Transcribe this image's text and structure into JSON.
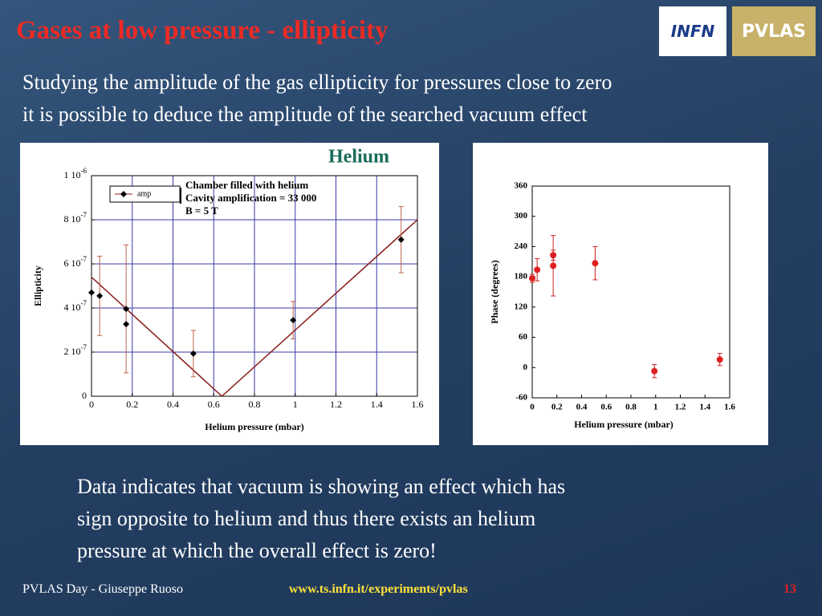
{
  "title": "Gases at low pressure - ellipticity",
  "logos": [
    "INFN",
    "PVLAS"
  ],
  "intro": [
    "Studying the amplitude of the gas ellipticity for pressures close to zero",
    "it is possible to deduce the amplitude of the searched vacuum effect"
  ],
  "conclusion": [
    "Data indicates that vacuum is showing an effect which has",
    "sign opposite to helium and thus there exists an helium",
    "pressure at which the overall effect is zero!"
  ],
  "footer": {
    "author": "PVLAS Day - Giuseppe Ruoso",
    "url": "www.ts.infn.it/experiments/pvlas",
    "page": "13"
  },
  "chart_data": [
    {
      "type": "scatter",
      "title": "Helium",
      "x_label": "Helium pressure (mbar)",
      "y_label": "Ellipticity",
      "annotation": [
        "Chamber filled with helium",
        "Cavity amplification = 33 000",
        "B = 5 T"
      ],
      "xlim": [
        0,
        1.6
      ],
      "xticks": [
        0,
        0.2,
        0.4,
        0.6,
        0.8,
        1,
        1.2,
        1.4,
        1.6
      ],
      "ylim": [
        0,
        1e-06
      ],
      "yticks": [
        0,
        {
          "value": 2e-07,
          "label": "2 10-7"
        },
        {
          "value": 4e-07,
          "label": "4 10-7"
        },
        {
          "value": 6e-07,
          "label": "6 10-7"
        },
        {
          "value": 8e-07,
          "label": "8 10-7"
        },
        {
          "value": 1e-06,
          "label": "1 10-6"
        }
      ],
      "grid": true,
      "legend": "upper left",
      "series": [
        {
          "name": "amp",
          "color": "#000000",
          "marker": "diamond",
          "error_color": "#c0604a",
          "x": [
            0,
            0.04,
            0.17,
            0.17,
            0.5,
            0.99,
            1.52
          ],
          "values": [
            4.7e-07,
            4.55e-07,
            3.96e-07,
            3.27e-07,
            1.93e-07,
            3.45e-07,
            7.1e-07
          ],
          "errors": [
            null,
            1.8e-07,
            2.9e-07,
            null,
            1.05e-07,
            8.5e-08,
            1.5e-07
          ]
        }
      ],
      "fit": {
        "color": "#8b1a1a",
        "x": [
          0,
          0.64,
          1.6
        ],
        "values": [
          5.4e-07,
          0,
          8e-07
        ]
      }
    },
    {
      "type": "scatter",
      "x_label": "Helium pressure (mbar)",
      "y_label": "Phase (degrees)",
      "xlim": [
        0,
        1.6
      ],
      "xticks": [
        0,
        0.2,
        0.4,
        0.6,
        0.8,
        1,
        1.2,
        1.4,
        1.6
      ],
      "ylim": [
        -60,
        360
      ],
      "yticks": [
        -60,
        0,
        60,
        120,
        180,
        240,
        300,
        360
      ],
      "grid": false,
      "series": [
        {
          "color": "#e02020",
          "marker": "circle",
          "error_color": "#d02020",
          "x": [
            0,
            0.04,
            0.17,
            0.17,
            0.51,
            0.99,
            1.52
          ],
          "values": [
            177,
            194,
            223,
            202,
            207,
            -7,
            16
          ],
          "errors": [
            8,
            22,
            10,
            60,
            33,
            13,
            12
          ]
        }
      ]
    }
  ]
}
